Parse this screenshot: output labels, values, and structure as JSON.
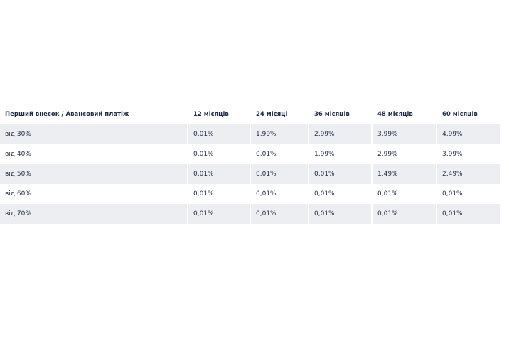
{
  "table": {
    "header": [
      "Перший внесок / Авансовий платіж",
      "12 місяців",
      "24 місяці",
      "36 місяців",
      "48 місяців",
      "60 місяців"
    ],
    "rows": [
      [
        "від 30%",
        "0,01%",
        "1,99%",
        "2,99%",
        "3,99%",
        "4,99%"
      ],
      [
        "від 40%",
        "0,01%",
        "0,01%",
        "1,99%",
        "2,99%",
        "3,99%"
      ],
      [
        "від 50%",
        "0,01%",
        "0,01%",
        "0,01%",
        "1,49%",
        "2,49%"
      ],
      [
        "від 60%",
        "0,01%",
        "0,01%",
        "0,01%",
        "0,01%",
        "0,01%"
      ],
      [
        "від 70%",
        "0,01%",
        "0,01%",
        "0,01%",
        "0,01%",
        "0,01%"
      ]
    ]
  }
}
